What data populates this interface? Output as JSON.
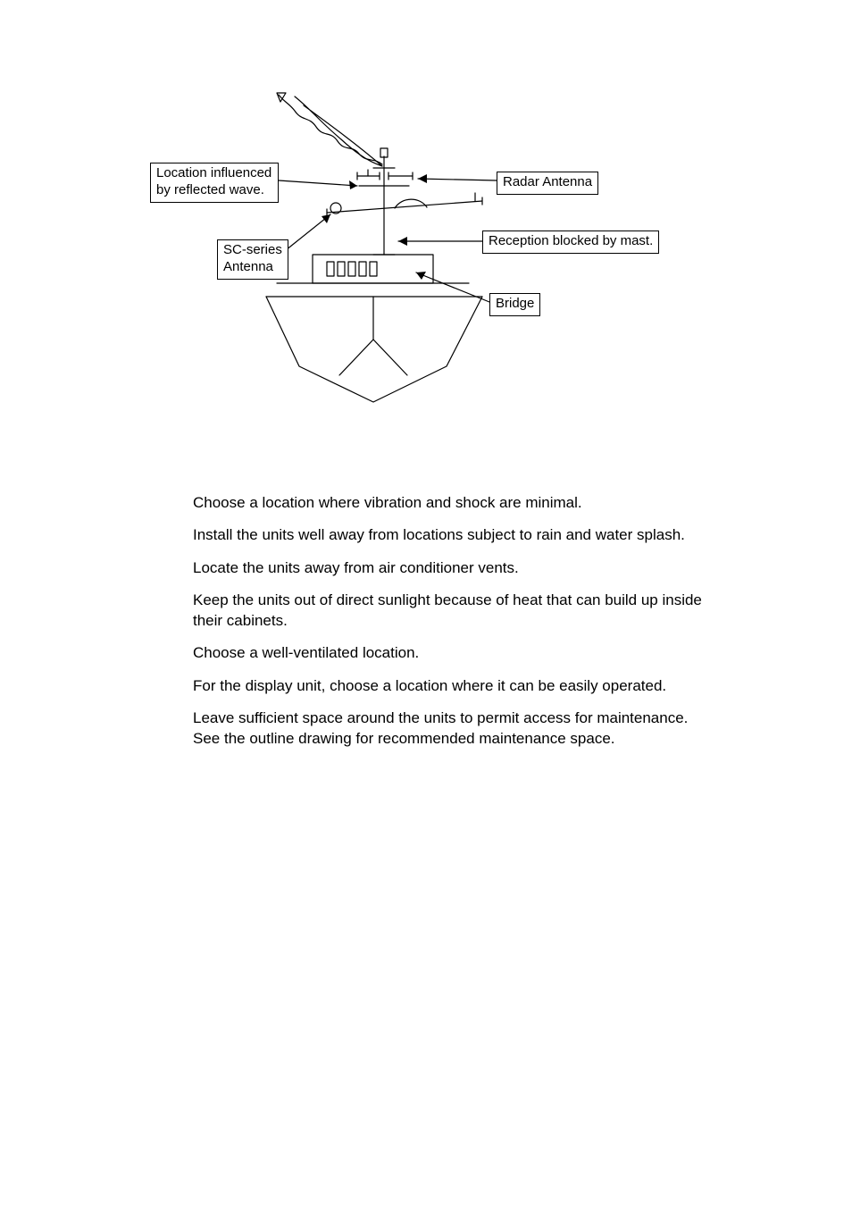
{
  "diagram": {
    "labels": {
      "location_influenced": "Location influenced\nby reflected wave.",
      "radar_antenna": "Radar Antenna",
      "sc_series_antenna": "SC-series\nAntenna",
      "reception_blocked": "Reception blocked by mast.",
      "bridge": "Bridge"
    },
    "colors": {
      "stroke": "#000000",
      "background": "#ffffff",
      "text": "#000000"
    },
    "line_width": 1.2,
    "font_size": 15
  },
  "body": {
    "p1": "Choose a location where vibration and shock are minimal.",
    "p2": "Install the units well away from locations subject to rain and water splash.",
    "p3": "Locate the units away from air conditioner vents.",
    "p4": "Keep the units out of direct sunlight because of heat that can build up inside their cabinets.",
    "p5": "Choose a well-ventilated location.",
    "p6": "For the display unit, choose a location where it can be easily operated.",
    "p7": "Leave sufficient space around the units to permit access for maintenance. See the outline drawing for recommended maintenance space."
  }
}
